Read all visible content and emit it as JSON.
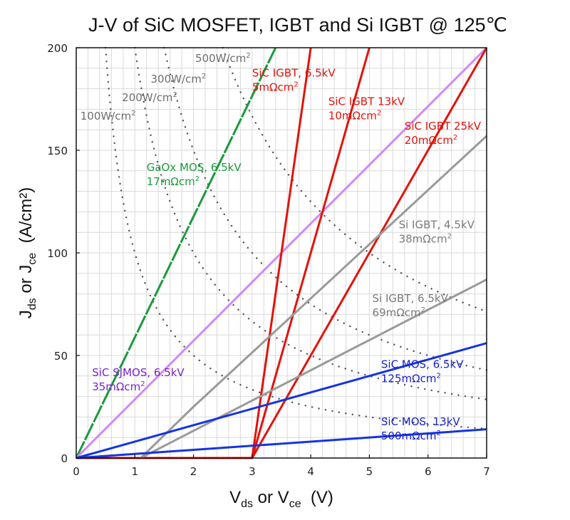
{
  "chart_data": {
    "type": "line",
    "title": "J-V of SiC MOSFET, IGBT and Si IGBT @ 125℃",
    "xlabel": {
      "main1": "V",
      "sub1": "ds",
      "mid": " or V",
      "sub2": "ce",
      "tail": "  (V)"
    },
    "ylabel": {
      "main1": "J",
      "sub1": "ds",
      "mid": " or J",
      "sub2": "ce",
      "tail": "  (A/cm²)"
    },
    "xlim": [
      0,
      7
    ],
    "ylim": [
      0,
      200
    ],
    "xticks": [
      0,
      1,
      2,
      3,
      4,
      5,
      6,
      7
    ],
    "yticks": [
      0,
      50,
      100,
      150,
      200
    ],
    "grid": true,
    "minor_grid": {
      "x_step": 0.2,
      "y_step": 10
    },
    "series": [
      {
        "name": "GaOx MOS, 6.5kV",
        "resistance": "17mΩcm²",
        "color": "#1b9a3c",
        "dashed": true,
        "points": [
          [
            0,
            0
          ],
          [
            3.4,
            200
          ]
        ]
      },
      {
        "name": "SiC SJMOS, 6.5kV",
        "resistance": "35mΩcm²",
        "color": "#d08af0",
        "points": [
          [
            0,
            0
          ],
          [
            7,
            200
          ]
        ]
      },
      {
        "name": "SiC IGBT, 6.5kV",
        "resistance": "5mΩcm²",
        "color": "#e3120b",
        "points": [
          [
            0,
            0
          ],
          [
            3,
            0
          ],
          [
            4,
            200
          ]
        ]
      },
      {
        "name": "SiC IGBT 13kV",
        "resistance": "10mΩcm²",
        "color": "#e3120b",
        "points": [
          [
            3,
            0
          ],
          [
            5,
            200
          ]
        ]
      },
      {
        "name": "SiC IGBT 25kV",
        "resistance": "20mΩcm²",
        "color": "#e3120b",
        "points": [
          [
            3,
            0
          ],
          [
            7,
            200
          ]
        ]
      },
      {
        "name": "Si IGBT, 4.5kV",
        "resistance": "38mΩcm²",
        "color": "#9a9a9a",
        "points": [
          [
            1.1,
            0
          ],
          [
            2,
            25
          ],
          [
            7,
            157
          ]
        ]
      },
      {
        "name": "Si IGBT, 6.5kV",
        "resistance": "69mΩcm²",
        "color": "#9a9a9a",
        "points": [
          [
            1.1,
            0
          ],
          [
            7,
            87
          ]
        ]
      },
      {
        "name": "SiC MOS, 6.5kV",
        "resistance": "125mΩcm²",
        "color": "#1434e0",
        "points": [
          [
            0,
            0
          ],
          [
            7,
            56
          ]
        ]
      },
      {
        "name": "SiC MOS, 13kV",
        "resistance": "500mΩcm²",
        "color": "#1434e0",
        "points": [
          [
            0,
            0
          ],
          [
            7,
            14
          ]
        ]
      }
    ],
    "power_curves": [
      {
        "label": "100W/cm²",
        "power": 100
      },
      {
        "label": "200W/cm²",
        "power": 200
      },
      {
        "label": "300W/cm²",
        "power": 300
      },
      {
        "label": "500W/cm²",
        "power": 500
      }
    ],
    "annotations": [
      {
        "line1": "SiC IGBT, 6.5kV",
        "line2": "5mΩcm",
        "sup": "2",
        "color": "#e3120b",
        "at": [
          3.0,
          186
        ]
      },
      {
        "line1": "SiC IGBT 13kV",
        "line2": "10mΩcm",
        "sup": "2",
        "color": "#e3120b",
        "at": [
          4.3,
          172
        ]
      },
      {
        "line1": "SiC IGBT 25kV",
        "line2": "20mΩcm",
        "sup": "2",
        "color": "#e3120b",
        "at": [
          5.6,
          160
        ]
      },
      {
        "line1": "GaOx MOS, 6.5kV",
        "line2": "17mΩcm",
        "sup": "2",
        "color": "#1b9a3c",
        "at": [
          1.2,
          140
        ]
      },
      {
        "line1": "Si IGBT, 4.5kV",
        "line2": "38mΩcm",
        "sup": "2",
        "color": "#7a7a7a",
        "at": [
          5.5,
          112
        ]
      },
      {
        "line1": "Si IGBT, 6.5kV",
        "line2": "69mΩcm",
        "sup": "2",
        "color": "#7a7a7a",
        "at": [
          5.05,
          76
        ]
      },
      {
        "line1": "SiC SJMOS, 6.5kV",
        "line2": "35mΩcm",
        "sup": "2",
        "color": "#7a22cc",
        "at": [
          0.27,
          40
        ]
      },
      {
        "line1": "SiC MOS, 6.5kV",
        "line2": "125mΩcm",
        "sup": "2",
        "color": "#1a22cc",
        "at": [
          5.2,
          44
        ]
      },
      {
        "line1": "SiC MOS, 13kV",
        "line2": "500mΩcm",
        "sup": "2",
        "color": "#1a22cc",
        "at": [
          5.2,
          16
        ]
      },
      {
        "line1": "100W/cm",
        "line2": "",
        "sup": "2",
        "color": "#6e6e6e",
        "at": [
          0.07,
          165
        ]
      },
      {
        "line1": "200W/cm",
        "line2": "",
        "sup": "2",
        "color": "#6e6e6e",
        "at": [
          0.78,
          174
        ]
      },
      {
        "line1": "300W/cm",
        "line2": "",
        "sup": "2",
        "color": "#6e6e6e",
        "at": [
          1.27,
          183
        ]
      },
      {
        "line1": "500W/cm",
        "line2": "",
        "sup": "2",
        "color": "#6e6e6e",
        "at": [
          2.03,
          193
        ]
      }
    ]
  }
}
